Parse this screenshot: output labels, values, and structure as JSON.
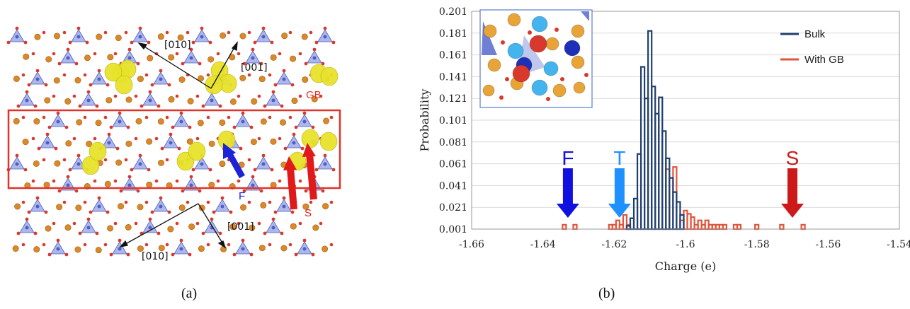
{
  "panel_a": {
    "labels": {
      "top_010": "[010]",
      "top_001": "[001]",
      "gb": "GB",
      "f": "F",
      "s": "S",
      "bottom_001": "[001]",
      "bottom_010": "[010]"
    },
    "colors": {
      "gb_box": "#e0342a",
      "oxygen": "#d9392c",
      "cation": "#d9882a",
      "tetrahedron": "#4b5fc9",
      "charge_density": "#e7e22a",
      "f_arrow": "#1c24d6",
      "s_arrow": "#e01a1a"
    }
  },
  "captions": {
    "a": "(a)",
    "b": "(b)"
  },
  "chart_data": {
    "type": "histogram",
    "xlabel": "Charge (e)",
    "ylabel": "Probability",
    "xlim": [
      -1.66,
      -1.54
    ],
    "ylim": [
      0.001,
      0.201
    ],
    "x_ticks": [
      "-1.66",
      "-1.64",
      "-1.62",
      "-1.6",
      "-1.58",
      "-1.56",
      "-1.54"
    ],
    "y_ticks": [
      "0.001",
      "0.021",
      "0.041",
      "0.061",
      "0.081",
      "0.101",
      "0.121",
      "0.141",
      "0.161",
      "0.181",
      "0.201"
    ],
    "bin_width": 0.001,
    "legend_position": "top-right",
    "series": [
      {
        "name": "Bulk",
        "color": "#1f3f6e",
        "x": [
          -1.616,
          -1.615,
          -1.614,
          -1.613,
          -1.612,
          -1.611,
          -1.61,
          -1.609,
          -1.608,
          -1.607,
          -1.606,
          -1.605,
          -1.604,
          -1.603,
          -1.602,
          -1.601
        ],
        "y": [
          0.004,
          0.011,
          0.029,
          0.07,
          0.15,
          0.121,
          0.183,
          0.132,
          0.107,
          0.122,
          0.091,
          0.066,
          0.048,
          0.035,
          0.026,
          0.014
        ]
      },
      {
        "name": "With GB",
        "color": "#e2543a",
        "x": [
          -1.634,
          -1.631,
          -1.621,
          -1.62,
          -1.619,
          -1.618,
          -1.617,
          -1.616,
          -1.605,
          -1.603,
          -1.601,
          -1.6,
          -1.599,
          -1.598,
          -1.597,
          -1.596,
          -1.595,
          -1.594,
          -1.593,
          -1.592,
          -1.591,
          -1.59,
          -1.589,
          -1.586,
          -1.585,
          -1.58,
          -1.573,
          -1.567
        ],
        "y": [
          0.005,
          0.005,
          0.005,
          0.005,
          0.009,
          0.005,
          0.014,
          0.005,
          0.056,
          0.058,
          0.009,
          0.018,
          0.015,
          0.012,
          0.005,
          0.009,
          0.005,
          0.009,
          0.005,
          0.005,
          0.005,
          0.005,
          0.005,
          0.005,
          0.005,
          0.005,
          0.005,
          0.005
        ]
      }
    ],
    "annotations": [
      {
        "text": "F",
        "x": -1.633,
        "color": "#1010e0"
      },
      {
        "text": "T",
        "x": -1.6185,
        "color": "#1e90ff"
      },
      {
        "text": "S",
        "x": -1.57,
        "color": "#cc1a1a"
      }
    ],
    "inset": {
      "atom_colors": [
        "#d9392c",
        "#43b4ee",
        "#1e2fb8",
        "#e8a437",
        "#4b5fc9"
      ]
    }
  }
}
